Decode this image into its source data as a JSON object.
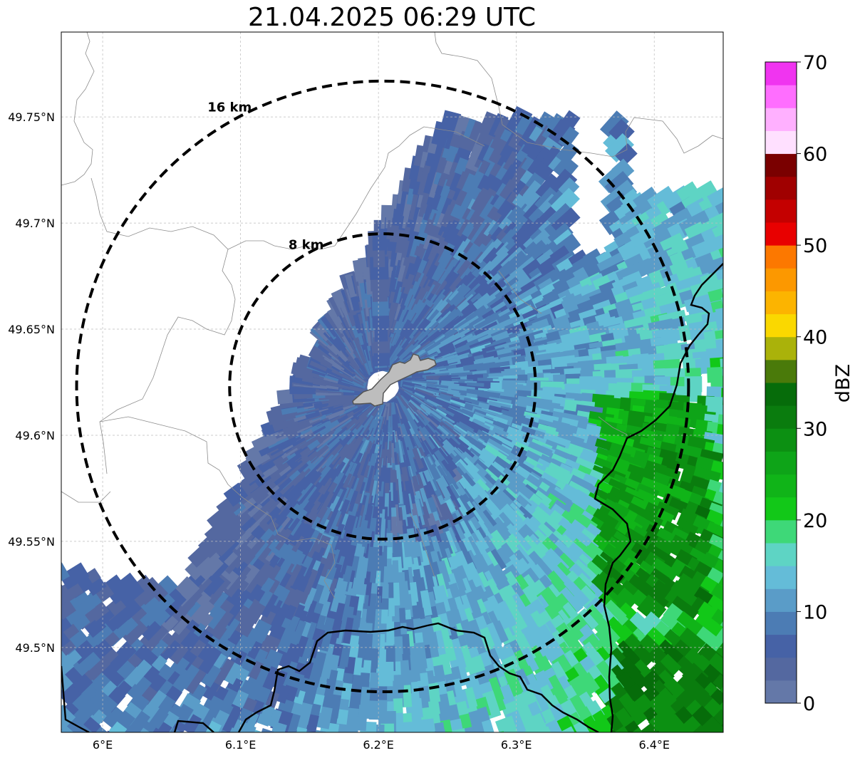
{
  "title": "21.04.2025 06:29 UTC",
  "map": {
    "lon_range": [
      5.97,
      6.45
    ],
    "lat_range": [
      49.46,
      49.79
    ],
    "lon_ticks": [
      {
        "value": 6.0,
        "label": "6°E"
      },
      {
        "value": 6.1,
        "label": "6.1°E"
      },
      {
        "value": 6.2,
        "label": "6.2°E"
      },
      {
        "value": 6.3,
        "label": "6.3°E"
      },
      {
        "value": 6.4,
        "label": "6.4°E"
      }
    ],
    "lat_ticks": [
      {
        "value": 49.75,
        "label": "49.75°N"
      },
      {
        "value": 49.7,
        "label": "49.7°N"
      },
      {
        "value": 49.65,
        "label": "49.65°N"
      },
      {
        "value": 49.6,
        "label": "49.6°N"
      },
      {
        "value": 49.55,
        "label": "49.55°N"
      },
      {
        "value": 49.5,
        "label": "49.5°N"
      }
    ],
    "gridlines": true,
    "radar_center": {
      "lon": 6.203,
      "lat": 49.623
    },
    "range_rings": [
      {
        "label": "8 km",
        "radius_km": 8
      },
      {
        "label": "16 km",
        "radius_km": 16
      }
    ],
    "reflectivity_field": "dBZ echoes concentrated east and south-east of the radar, strongest (20–28 dBZ) near 6.35–6.45°E",
    "colors": {
      "country_border": "#000000",
      "commune_border": "#8c8c8c",
      "ring": "#000000",
      "city": "#bdbdbd"
    }
  },
  "colorbar": {
    "label": "dBZ",
    "range": [
      0,
      70
    ],
    "tick_labels": [
      "0",
      "10",
      "20",
      "30",
      "40",
      "50",
      "60",
      "70"
    ],
    "colors": [
      "#6478a8",
      "#5468a0",
      "#4662a6",
      "#4c7cb4",
      "#5a9cc8",
      "#64bcd8",
      "#5ed4c4",
      "#3ed878",
      "#12c818",
      "#10b418",
      "#0ea418",
      "#0c9012",
      "#0a7c0e",
      "#066c0a",
      "#4a7a0a",
      "#aab20a",
      "#fad800",
      "#fcb400",
      "#fc9800",
      "#fc7800",
      "#e80000",
      "#c40000",
      "#a00000",
      "#7a0000",
      "#ffe0ff",
      "#ffb0ff",
      "#ff6eff",
      "#f034f0"
    ]
  }
}
